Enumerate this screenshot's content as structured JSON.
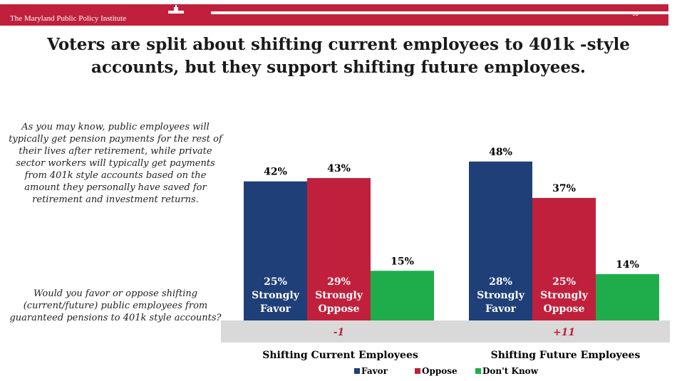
{
  "header": {
    "org_name": "The Maryland Public Policy Institute",
    "page_number": "53"
  },
  "title": "Voters are split about shifting current employees to 401k -style accounts, but they support shifting future employees.",
  "question": {
    "intro": "As you may know, public employees will typically get pension payments for the rest of their lives after retirement, while private sector workers will typically get payments from 401k style accounts based on the amount they personally have saved for retirement and investment returns.",
    "prompt": "Would you favor or oppose shifting (current/future) public employees from guaranteed pensions to 401k style accounts?"
  },
  "chart_data": {
    "type": "bar",
    "categories": [
      "Shifting Current Employees",
      "Shifting Future Employees"
    ],
    "series": [
      {
        "name": "Favor",
        "values": [
          42,
          48
        ],
        "labels": [
          "42%",
          "48%"
        ],
        "color": "#1f3f78",
        "strong_values": [
          25,
          28
        ],
        "strong_pct": [
          "25%",
          "28%"
        ],
        "strong_text": [
          "Strongly",
          "Strongly"
        ],
        "strong_word": [
          "Favor",
          "Favor"
        ]
      },
      {
        "name": "Oppose",
        "values": [
          43,
          37
        ],
        "labels": [
          "43%",
          "37%"
        ],
        "color": "#c0203c",
        "strong_values": [
          29,
          25
        ],
        "strong_pct": [
          "29%",
          "25%"
        ],
        "strong_text": [
          "Strongly",
          "Strongly"
        ],
        "strong_word": [
          "Oppose",
          "Oppose"
        ]
      },
      {
        "name": "Don't Know",
        "values": [
          15,
          14
        ],
        "labels": [
          "15%",
          "14%"
        ],
        "color": "#1fad4b"
      }
    ],
    "net_difference": [
      "-1",
      "+11"
    ],
    "legend_position": "bottom",
    "ylim": [
      0,
      50
    ],
    "grid": false
  }
}
